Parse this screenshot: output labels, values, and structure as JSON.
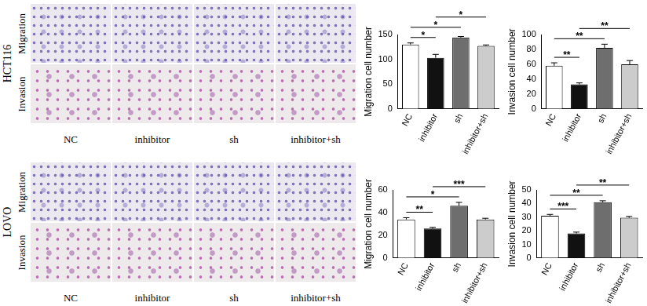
{
  "image_panels": [
    {
      "cell_line": "HCT116",
      "rows": [
        "Migration",
        "Invasion"
      ],
      "columns": [
        "NC",
        "inhibitor",
        "sh",
        "inhibitor+sh"
      ]
    },
    {
      "cell_line": "LOVO",
      "rows": [
        "Migration",
        "Invasion"
      ],
      "columns": [
        "NC",
        "inhibitor",
        "sh",
        "inhibitor+sh"
      ]
    }
  ],
  "chart_data": [
    {
      "type": "bar",
      "y_label": "Migration cell number",
      "categories": [
        "NC",
        "inhibitor",
        "sh",
        "inhibitor+sh"
      ],
      "values": [
        130,
        103,
        144,
        127
      ],
      "errors": [
        3,
        7,
        2,
        2
      ],
      "colors": [
        "#ffffff",
        "#111111",
        "#6e6e6e",
        "#cccccc"
      ],
      "ylim": [
        0,
        150
      ],
      "yticks": [
        0,
        50,
        100,
        150
      ],
      "grid": false,
      "significance": [
        {
          "from": "NC",
          "to": "inhibitor",
          "label": "*"
        },
        {
          "from": "NC",
          "to": "sh",
          "label": "*"
        },
        {
          "from": "inhibitor",
          "to": "inhibitor+sh",
          "label": "*"
        }
      ]
    },
    {
      "type": "bar",
      "y_label": "Invasion cell number",
      "categories": [
        "NC",
        "inhibitor",
        "sh",
        "inhibitor+sh"
      ],
      "values": [
        58,
        33,
        82,
        60
      ],
      "errors": [
        4,
        2,
        5,
        5
      ],
      "colors": [
        "#ffffff",
        "#111111",
        "#6e6e6e",
        "#cccccc"
      ],
      "ylim": [
        0,
        100
      ],
      "yticks": [
        0,
        20,
        40,
        60,
        80,
        100
      ],
      "grid": false,
      "significance": [
        {
          "from": "NC",
          "to": "inhibitor",
          "label": "**"
        },
        {
          "from": "NC",
          "to": "sh",
          "label": "**"
        },
        {
          "from": "inhibitor",
          "to": "inhibitor+sh",
          "label": "**"
        }
      ]
    },
    {
      "type": "bar",
      "y_label": "Migration cell number",
      "categories": [
        "NC",
        "inhibitor",
        "sh",
        "inhibitor+sh"
      ],
      "values": [
        34,
        26,
        46,
        34
      ],
      "errors": [
        1.5,
        1,
        3,
        1
      ],
      "colors": [
        "#ffffff",
        "#111111",
        "#6e6e6e",
        "#cccccc"
      ],
      "ylim": [
        0,
        60
      ],
      "yticks": [
        0,
        20,
        40,
        60
      ],
      "grid": false,
      "significance": [
        {
          "from": "NC",
          "to": "inhibitor",
          "label": "**"
        },
        {
          "from": "NC",
          "to": "sh",
          "label": "*"
        },
        {
          "from": "inhibitor",
          "to": "inhibitor+sh",
          "label": "***"
        }
      ]
    },
    {
      "type": "bar",
      "y_label": "Invasion cell number",
      "categories": [
        "NC",
        "inhibitor",
        "sh",
        "inhibitor+sh"
      ],
      "values": [
        31,
        18,
        41,
        29.5
      ],
      "errors": [
        1,
        1,
        1,
        1
      ],
      "colors": [
        "#ffffff",
        "#111111",
        "#6e6e6e",
        "#cccccc"
      ],
      "ylim": [
        0,
        50
      ],
      "yticks": [
        0,
        10,
        20,
        30,
        40,
        50
      ],
      "grid": false,
      "significance": [
        {
          "from": "NC",
          "to": "inhibitor",
          "label": "***"
        },
        {
          "from": "NC",
          "to": "sh",
          "label": "**"
        },
        {
          "from": "inhibitor",
          "to": "inhibitor+sh",
          "label": "**"
        }
      ]
    }
  ]
}
